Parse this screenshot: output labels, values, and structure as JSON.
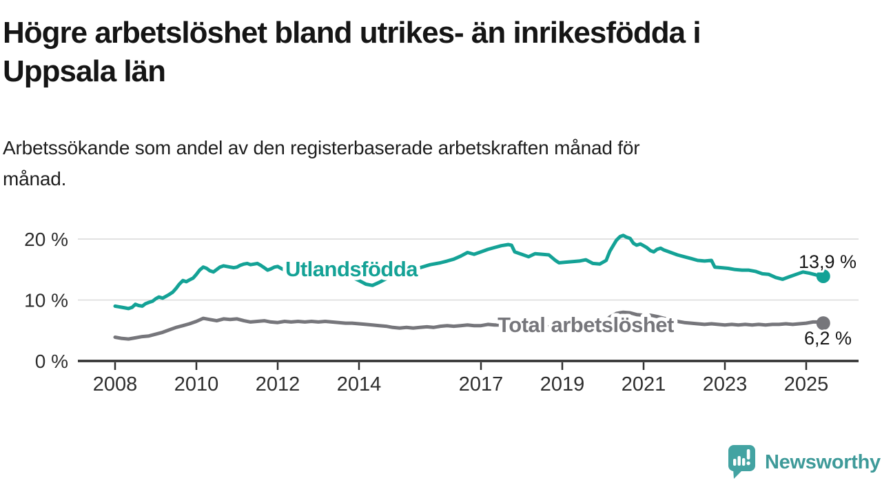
{
  "header": {
    "title_lines": [
      "Högre arbetslöshet bland utrikes- än inrikesfödda i",
      "Uppsala län"
    ],
    "subtitle_lines": [
      "Arbetssökande som andel av den registerbaserade arbetskraften månad för",
      "månad."
    ]
  },
  "branding": {
    "logo_text": "Newsworthy"
  },
  "colors": {
    "series1": "#14a296",
    "series2": "#76767b",
    "axis": "#2e2e2e",
    "grid": "#d9d9d9",
    "text": "#161616",
    "logo": "#43a3a2",
    "logo_text": "#3e9a99"
  },
  "chart_data": {
    "type": "line",
    "title": "Högre arbetslöshet bland utrikes- än inrikesfödda i Uppsala län",
    "subtitle": "Arbetssökande som andel av den registerbaserade arbetskraften månad för månad.",
    "unit": "%",
    "grid": true,
    "xlim": [
      2007.8,
      2026.6
    ],
    "ylim": [
      0,
      22
    ],
    "x_ticks": [
      {
        "year": 2008,
        "label": "2008"
      },
      {
        "year": 2010,
        "label": "2010"
      },
      {
        "year": 2012,
        "label": "2012"
      },
      {
        "year": 2014,
        "label": "2014"
      },
      {
        "year": 2017,
        "label": "2017"
      },
      {
        "year": 2019,
        "label": "2019"
      },
      {
        "year": 2021,
        "label": "2021"
      },
      {
        "year": 2023,
        "label": "2023"
      },
      {
        "year": 2025,
        "label": "2025"
      }
    ],
    "y_ticks": [
      {
        "value": 20,
        "label": "20 %"
      },
      {
        "value": 10,
        "label": "10 %"
      },
      {
        "value": 0,
        "label": "0 %"
      }
    ],
    "series": [
      {
        "name": "Utlandsfödda",
        "color": "#14a296",
        "end_label": "13,9 %",
        "last_value": 13.9,
        "points": [
          [
            2008,
            9
          ],
          [
            2008.08,
            8.9
          ],
          [
            2008.17,
            8.8
          ],
          [
            2008.25,
            8.7
          ],
          [
            2008.33,
            8.6
          ],
          [
            2008.42,
            8.8
          ],
          [
            2008.5,
            9.3
          ],
          [
            2008.58,
            9.1
          ],
          [
            2008.67,
            9
          ],
          [
            2008.75,
            9.4
          ],
          [
            2008.83,
            9.6
          ],
          [
            2008.92,
            9.8
          ],
          [
            2009,
            10.2
          ],
          [
            2009.08,
            10.5
          ],
          [
            2009.17,
            10.3
          ],
          [
            2009.25,
            10.6
          ],
          [
            2009.33,
            10.9
          ],
          [
            2009.42,
            11.3
          ],
          [
            2009.5,
            11.9
          ],
          [
            2009.58,
            12.6
          ],
          [
            2009.67,
            13.2
          ],
          [
            2009.75,
            13
          ],
          [
            2009.83,
            13.3
          ],
          [
            2009.92,
            13.6
          ],
          [
            2010,
            14.2
          ],
          [
            2010.08,
            14.9
          ],
          [
            2010.17,
            15.4
          ],
          [
            2010.25,
            15.2
          ],
          [
            2010.33,
            14.8
          ],
          [
            2010.42,
            14.6
          ],
          [
            2010.5,
            15
          ],
          [
            2010.58,
            15.4
          ],
          [
            2010.67,
            15.6
          ],
          [
            2010.75,
            15.5
          ],
          [
            2010.83,
            15.4
          ],
          [
            2010.92,
            15.3
          ],
          [
            2011,
            15.4
          ],
          [
            2011.08,
            15.7
          ],
          [
            2011.17,
            15.9
          ],
          [
            2011.25,
            16
          ],
          [
            2011.33,
            15.8
          ],
          [
            2011.42,
            15.9
          ],
          [
            2011.5,
            16
          ],
          [
            2011.58,
            15.7
          ],
          [
            2011.67,
            15.3
          ],
          [
            2011.75,
            14.9
          ],
          [
            2011.83,
            15.1
          ],
          [
            2011.92,
            15.4
          ],
          [
            2012,
            15.5
          ],
          [
            2012.08,
            15.2
          ],
          [
            2012.17,
            14.9
          ],
          [
            2012.25,
            14.7
          ],
          [
            2012.33,
            15
          ],
          [
            2012.42,
            15.3
          ],
          [
            2012.5,
            15.4
          ],
          [
            2012.58,
            15.1
          ],
          [
            2012.67,
            14.9
          ],
          [
            2012.75,
            15
          ],
          [
            2012.83,
            15.2
          ],
          [
            2012.92,
            15.1
          ],
          [
            2013,
            14.9
          ],
          [
            2013.25,
            15
          ],
          [
            2013.5,
            14.6
          ],
          [
            2013.75,
            14
          ],
          [
            2014,
            13.2
          ],
          [
            2014.17,
            12.6
          ],
          [
            2014.33,
            12.4
          ],
          [
            2014.5,
            12.9
          ],
          [
            2014.67,
            13.5
          ],
          [
            2014.83,
            14.1
          ],
          [
            2015,
            14.6
          ],
          [
            2015.25,
            15
          ],
          [
            2015.5,
            15.3
          ],
          [
            2015.75,
            15.8
          ],
          [
            2016,
            16.1
          ],
          [
            2016.17,
            16.4
          ],
          [
            2016.33,
            16.7
          ],
          [
            2016.5,
            17.2
          ],
          [
            2016.67,
            17.8
          ],
          [
            2016.83,
            17.5
          ],
          [
            2017,
            17.9
          ],
          [
            2017.17,
            18.3
          ],
          [
            2017.33,
            18.6
          ],
          [
            2017.5,
            18.9
          ],
          [
            2017.67,
            19.1
          ],
          [
            2017.75,
            19
          ],
          [
            2017.83,
            17.9
          ],
          [
            2018,
            17.5
          ],
          [
            2018.17,
            17.1
          ],
          [
            2018.33,
            17.6
          ],
          [
            2018.5,
            17.5
          ],
          [
            2018.67,
            17.4
          ],
          [
            2018.83,
            16.5
          ],
          [
            2018.92,
            16.1
          ],
          [
            2019.08,
            16.2
          ],
          [
            2019.25,
            16.3
          ],
          [
            2019.42,
            16.4
          ],
          [
            2019.58,
            16.6
          ],
          [
            2019.75,
            16
          ],
          [
            2019.92,
            15.9
          ],
          [
            2020.08,
            16.5
          ],
          [
            2020.17,
            18
          ],
          [
            2020.33,
            19.8
          ],
          [
            2020.42,
            20.4
          ],
          [
            2020.5,
            20.6
          ],
          [
            2020.58,
            20.3
          ],
          [
            2020.67,
            20.1
          ],
          [
            2020.75,
            19.3
          ],
          [
            2020.83,
            19
          ],
          [
            2020.92,
            19.2
          ],
          [
            2021,
            18.9
          ],
          [
            2021.08,
            18.6
          ],
          [
            2021.17,
            18.1
          ],
          [
            2021.25,
            17.9
          ],
          [
            2021.33,
            18.3
          ],
          [
            2021.42,
            18.5
          ],
          [
            2021.5,
            18.2
          ],
          [
            2021.67,
            17.8
          ],
          [
            2021.83,
            17.4
          ],
          [
            2022,
            17.1
          ],
          [
            2022.17,
            16.8
          ],
          [
            2022.33,
            16.5
          ],
          [
            2022.5,
            16.4
          ],
          [
            2022.67,
            16.5
          ],
          [
            2022.75,
            15.4
          ],
          [
            2022.92,
            15.3
          ],
          [
            2023.08,
            15.2
          ],
          [
            2023.25,
            15
          ],
          [
            2023.42,
            14.9
          ],
          [
            2023.58,
            14.9
          ],
          [
            2023.75,
            14.7
          ],
          [
            2023.92,
            14.3
          ],
          [
            2024.08,
            14.2
          ],
          [
            2024.25,
            13.7
          ],
          [
            2024.42,
            13.4
          ],
          [
            2024.58,
            13.8
          ],
          [
            2024.75,
            14.2
          ],
          [
            2024.92,
            14.6
          ],
          [
            2025.08,
            14.4
          ],
          [
            2025.25,
            14.1
          ],
          [
            2025.42,
            13.9
          ]
        ]
      },
      {
        "name": "Total arbetslöshet",
        "color": "#76767b",
        "end_label": "6,2 %",
        "last_value": 6.2,
        "points": [
          [
            2008,
            3.9
          ],
          [
            2008.17,
            3.7
          ],
          [
            2008.33,
            3.6
          ],
          [
            2008.5,
            3.8
          ],
          [
            2008.67,
            4
          ],
          [
            2008.83,
            4.1
          ],
          [
            2009,
            4.4
          ],
          [
            2009.17,
            4.7
          ],
          [
            2009.33,
            5.1
          ],
          [
            2009.5,
            5.5
          ],
          [
            2009.67,
            5.8
          ],
          [
            2009.83,
            6.1
          ],
          [
            2010,
            6.5
          ],
          [
            2010.17,
            7
          ],
          [
            2010.33,
            6.8
          ],
          [
            2010.5,
            6.6
          ],
          [
            2010.67,
            6.9
          ],
          [
            2010.83,
            6.8
          ],
          [
            2011,
            6.9
          ],
          [
            2011.17,
            6.6
          ],
          [
            2011.33,
            6.4
          ],
          [
            2011.5,
            6.5
          ],
          [
            2011.67,
            6.6
          ],
          [
            2011.83,
            6.4
          ],
          [
            2012,
            6.3
          ],
          [
            2012.17,
            6.5
          ],
          [
            2012.33,
            6.4
          ],
          [
            2012.5,
            6.5
          ],
          [
            2012.67,
            6.4
          ],
          [
            2012.83,
            6.5
          ],
          [
            2013,
            6.4
          ],
          [
            2013.17,
            6.5
          ],
          [
            2013.33,
            6.4
          ],
          [
            2013.5,
            6.3
          ],
          [
            2013.67,
            6.2
          ],
          [
            2013.83,
            6.2
          ],
          [
            2014,
            6.1
          ],
          [
            2014.17,
            6
          ],
          [
            2014.33,
            5.9
          ],
          [
            2014.5,
            5.8
          ],
          [
            2014.67,
            5.7
          ],
          [
            2014.83,
            5.5
          ],
          [
            2015,
            5.4
          ],
          [
            2015.17,
            5.5
          ],
          [
            2015.33,
            5.4
          ],
          [
            2015.5,
            5.5
          ],
          [
            2015.67,
            5.6
          ],
          [
            2015.83,
            5.5
          ],
          [
            2016,
            5.7
          ],
          [
            2016.17,
            5.8
          ],
          [
            2016.33,
            5.7
          ],
          [
            2016.5,
            5.8
          ],
          [
            2016.67,
            5.9
          ],
          [
            2016.83,
            5.8
          ],
          [
            2017,
            5.8
          ],
          [
            2017.17,
            6
          ],
          [
            2017.33,
            5.9
          ],
          [
            2017.5,
            5.9
          ],
          [
            2017.67,
            5.8
          ],
          [
            2017.83,
            5.8
          ],
          [
            2018,
            5.7
          ],
          [
            2018.25,
            5.7
          ],
          [
            2018.5,
            5.6
          ],
          [
            2018.75,
            5.6
          ],
          [
            2019,
            5.6
          ],
          [
            2019.25,
            5.7
          ],
          [
            2019.5,
            5.6
          ],
          [
            2019.75,
            5.8
          ],
          [
            2020,
            6.2
          ],
          [
            2020.17,
            7.2
          ],
          [
            2020.33,
            7.8
          ],
          [
            2020.5,
            8
          ],
          [
            2020.67,
            7.9
          ],
          [
            2020.83,
            7.6
          ],
          [
            2021,
            7.5
          ],
          [
            2021.17,
            7.5
          ],
          [
            2021.33,
            7.3
          ],
          [
            2021.5,
            7
          ],
          [
            2021.67,
            6.8
          ],
          [
            2021.83,
            6.5
          ],
          [
            2022,
            6.3
          ],
          [
            2022.17,
            6.2
          ],
          [
            2022.33,
            6.1
          ],
          [
            2022.5,
            6
          ],
          [
            2022.67,
            6.1
          ],
          [
            2022.83,
            6
          ],
          [
            2023,
            5.9
          ],
          [
            2023.17,
            6
          ],
          [
            2023.33,
            5.9
          ],
          [
            2023.5,
            6
          ],
          [
            2023.67,
            5.9
          ],
          [
            2023.83,
            6
          ],
          [
            2024,
            5.9
          ],
          [
            2024.17,
            6
          ],
          [
            2024.33,
            6
          ],
          [
            2024.5,
            6.1
          ],
          [
            2024.67,
            6
          ],
          [
            2024.83,
            6.1
          ],
          [
            2025,
            6.2
          ],
          [
            2025.17,
            6.4
          ],
          [
            2025.33,
            6.4
          ],
          [
            2025.42,
            6.2
          ]
        ]
      }
    ],
    "layout": {
      "legend_position": "inline-on-line",
      "series_label_anchors": [
        [
          510,
          401
        ],
        [
          850,
          482
        ]
      ],
      "end_label_anchors": [
        [
          1159,
          389
        ],
        [
          1167,
          500
        ]
      ]
    }
  }
}
